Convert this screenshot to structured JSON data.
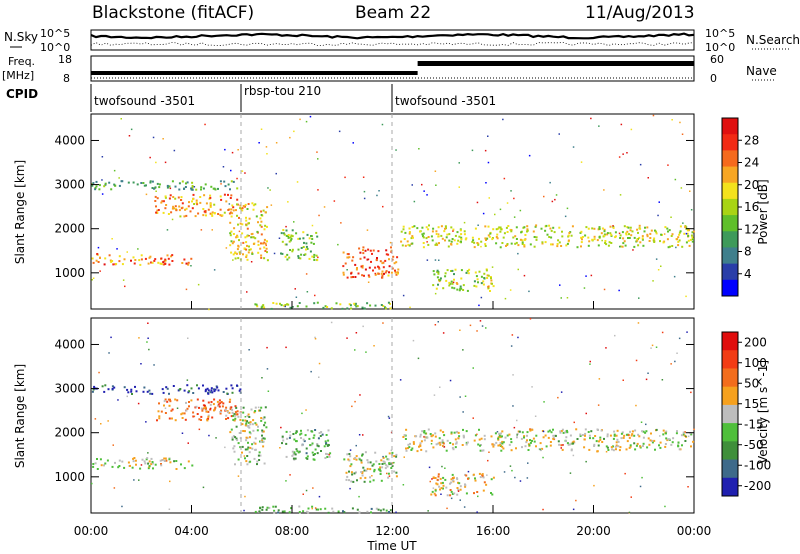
{
  "header": {
    "station": "Blackstone (fitACF)",
    "beam": "Beam 22",
    "date": "11/Aug/2013"
  },
  "summary_panel": {
    "left_labels": {
      "nsky": "N.Sky",
      "freq": "Freq.",
      "freq_unit": "[MHz]",
      "cpid": "CPID"
    },
    "right_labels": {
      "nsearch": "N.Search",
      "nave": "Nave"
    },
    "nsky_ticks": [
      "10^5",
      "10^0"
    ],
    "freq_ticks": [
      "18",
      "8"
    ],
    "nave_ticks": [
      "60",
      "0"
    ],
    "cpid_segments": [
      {
        "label": "twofsound -3501",
        "start_hour": 0.0,
        "end_hour": 6.0
      },
      {
        "label": "rbsp-tou 210",
        "start_hour": 6.0,
        "end_hour": 12.0
      },
      {
        "label": "twofsound -3501",
        "start_hour": 12.0,
        "end_hour": 24.0
      }
    ],
    "nave_step": {
      "change_hour": 13.0,
      "before": 10,
      "after": 40
    }
  },
  "chart_data": [
    {
      "type": "heatmap",
      "parameter": "Power",
      "ylabel": "Slant Range [km]",
      "xlabel": "",
      "xlim_hours": [
        0,
        24
      ],
      "ylim_km": [
        180,
        4600
      ],
      "x_ticks": [
        "00:00",
        "04:00",
        "08:00",
        "12:00",
        "16:00",
        "20:00",
        "00:00"
      ],
      "y_ticks": [
        1000,
        2000,
        3000,
        4000
      ],
      "colorbar": {
        "label": "Power [dB]",
        "ticks": [
          "4",
          "8",
          "12",
          "16",
          "20",
          "24",
          "28"
        ],
        "colors": [
          "#0000ff",
          "#2a3ea8",
          "#3f7f8c",
          "#3e9a5a",
          "#5fbf2a",
          "#a8d414",
          "#f3e21c",
          "#f7a623",
          "#f56a1d",
          "#f22a14",
          "#e01010"
        ]
      },
      "regions": [
        {
          "name": "band 1300km",
          "t": [
            0.0,
            4.0
          ],
          "r": [
            1200,
            1450
          ],
          "val": 0.75
        },
        {
          "name": "band 2500km",
          "t": [
            2.5,
            6.0
          ],
          "r": [
            2300,
            2800
          ],
          "val": 0.7
        },
        {
          "name": "band 3000km",
          "t": [
            0.0,
            6.0
          ],
          "r": [
            2900,
            3100
          ],
          "val": 0.35
        },
        {
          "name": "ramp 06-07",
          "t": [
            5.5,
            7.0
          ],
          "r": [
            1300,
            2600
          ],
          "val": 0.6
        },
        {
          "name": "blob 08",
          "t": [
            7.5,
            9.0
          ],
          "r": [
            1300,
            2000
          ],
          "val": 0.45
        },
        {
          "name": "descend 10-12",
          "t": [
            10.0,
            12.2
          ],
          "r": [
            900,
            1600
          ],
          "val": 0.8
        },
        {
          "name": "band 1800km",
          "t": [
            12.3,
            24.0
          ],
          "r": [
            1600,
            2100
          ],
          "val": 0.55
        },
        {
          "name": "dip 14-16",
          "t": [
            13.5,
            16.0
          ],
          "r": [
            600,
            1100
          ],
          "val": 0.5
        },
        {
          "name": "ground near",
          "t": [
            6.5,
            12.0
          ],
          "r": [
            200,
            350
          ],
          "val": 0.45
        }
      ]
    },
    {
      "type": "heatmap",
      "parameter": "Velocity",
      "ylabel": "Slant Range [km]",
      "xlabel": "Time UT",
      "xlim_hours": [
        0,
        24
      ],
      "ylim_km": [
        180,
        4600
      ],
      "x_ticks": [
        "00:00",
        "04:00",
        "08:00",
        "12:00",
        "16:00",
        "20:00",
        "00:00"
      ],
      "y_ticks": [
        1000,
        2000,
        3000,
        4000
      ],
      "colorbar": {
        "label": "Velocity [m s^-1]",
        "ticks": [
          "200",
          "100",
          "50",
          "15",
          "-15",
          "-50",
          "-100",
          "-200"
        ],
        "colors": [
          "#2020b0",
          "#3e6a8a",
          "#3f8f3a",
          "#4fbf3a",
          "#bdbdbd",
          "#f6a11e",
          "#f36d1c",
          "#f23c14",
          "#e00d0d"
        ]
      },
      "regions": [
        {
          "name": "band 1300km",
          "t": [
            0.0,
            4.0
          ],
          "r": [
            1200,
            1450
          ],
          "val": 0.5
        },
        {
          "name": "band 2500km",
          "t": [
            2.5,
            6.0
          ],
          "r": [
            2300,
            2800
          ],
          "val": 0.7
        },
        {
          "name": "band 3000km",
          "t": [
            0.0,
            6.0
          ],
          "r": [
            2900,
            3100
          ],
          "val": 0.1
        },
        {
          "name": "ramp 06-07",
          "t": [
            5.5,
            7.0
          ],
          "r": [
            1300,
            2600
          ],
          "val": 0.45
        },
        {
          "name": "blob 08",
          "t": [
            7.5,
            9.5
          ],
          "r": [
            1400,
            2100
          ],
          "val": 0.35
        },
        {
          "name": "descend 10-12",
          "t": [
            10.0,
            12.2
          ],
          "r": [
            900,
            1600
          ],
          "val": 0.45
        },
        {
          "name": "band 1800km",
          "t": [
            12.3,
            24.0
          ],
          "r": [
            1600,
            2100
          ],
          "val": 0.5
        },
        {
          "name": "dip 14-16",
          "t": [
            13.5,
            16.0
          ],
          "r": [
            600,
            1100
          ],
          "val": 0.55
        },
        {
          "name": "ground near",
          "t": [
            6.5,
            12.0
          ],
          "r": [
            200,
            350
          ],
          "val": 0.35
        }
      ]
    }
  ]
}
